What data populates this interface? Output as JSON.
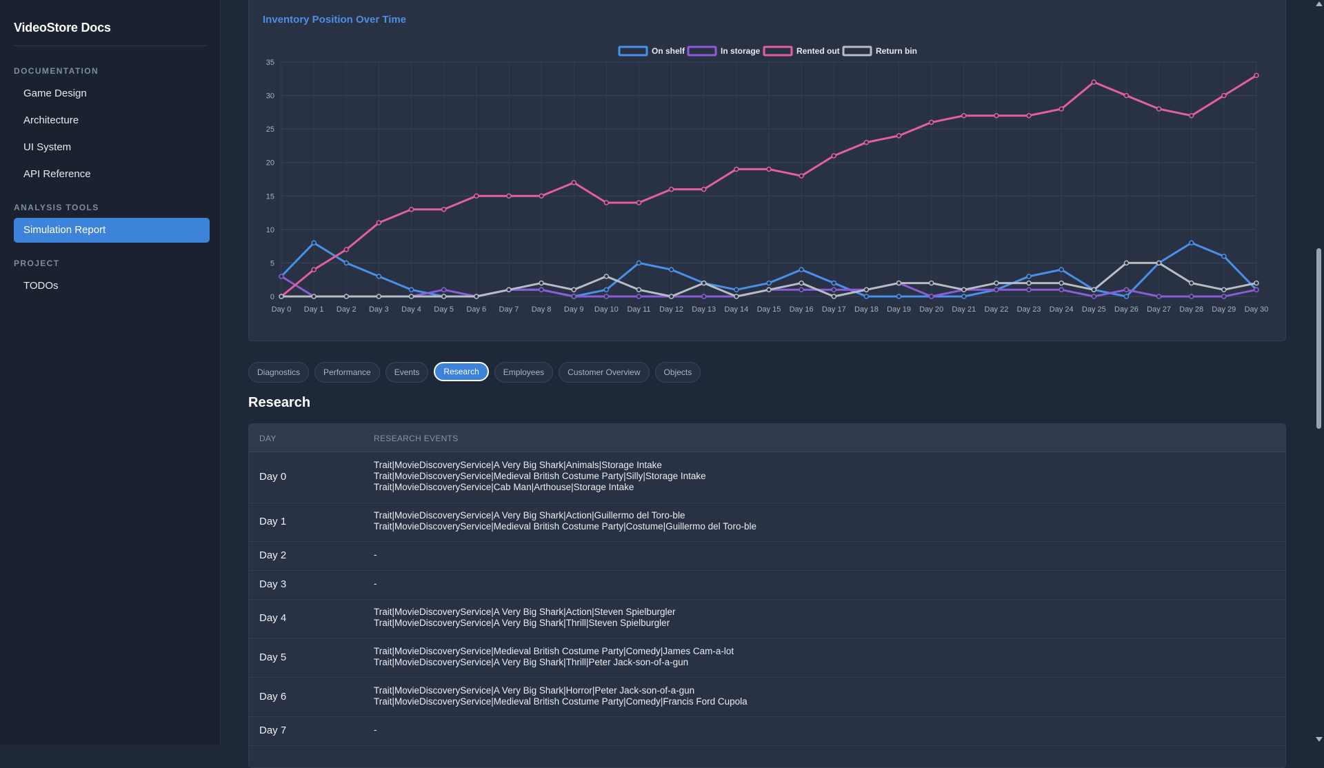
{
  "app": {
    "brand": "VideoStore Docs"
  },
  "sidebar": {
    "sections": [
      {
        "label": "DOCUMENTATION"
      },
      {
        "label": "ANALYSIS TOOLS"
      },
      {
        "label": "PROJECT"
      }
    ],
    "items": [
      {
        "label": "Game Design"
      },
      {
        "label": "Architecture"
      },
      {
        "label": "UI System"
      },
      {
        "label": "API Reference"
      },
      {
        "label": "Simulation Report",
        "active": true
      },
      {
        "label": "TODOs"
      }
    ]
  },
  "chart_data": {
    "type": "line",
    "title": "Inventory Position Over Time",
    "x": [
      "Day 0",
      "Day 1",
      "Day 2",
      "Day 3",
      "Day 4",
      "Day 5",
      "Day 6",
      "Day 7",
      "Day 8",
      "Day 9",
      "Day 10",
      "Day 11",
      "Day 12",
      "Day 13",
      "Day 14",
      "Day 15",
      "Day 16",
      "Day 17",
      "Day 18",
      "Day 19",
      "Day 20",
      "Day 21",
      "Day 22",
      "Day 23",
      "Day 24",
      "Day 25",
      "Day 26",
      "Day 27",
      "Day 28",
      "Day 29",
      "Day 30"
    ],
    "ylim": [
      0,
      35
    ],
    "yticks": [
      0,
      5,
      10,
      15,
      20,
      25,
      30,
      35
    ],
    "grid": true,
    "legend": "top-center",
    "series": [
      {
        "name": "On shelf",
        "color": "#4a8fe8",
        "values": [
          3,
          8,
          5,
          3,
          1,
          0,
          0,
          1,
          1,
          0,
          1,
          5,
          4,
          2,
          1,
          2,
          4,
          2,
          0,
          0,
          0,
          0,
          1,
          3,
          4,
          1,
          0,
          5,
          8,
          6,
          1
        ]
      },
      {
        "name": "In storage",
        "color": "#8b5cd6",
        "values": [
          3,
          0,
          0,
          0,
          0,
          1,
          0,
          1,
          1,
          0,
          0,
          0,
          0,
          0,
          0,
          1,
          1,
          1,
          1,
          2,
          0,
          1,
          1,
          1,
          1,
          0,
          1,
          0,
          0,
          0,
          1
        ]
      },
      {
        "name": "Rented out",
        "color": "#e35fa0",
        "values": [
          0,
          4,
          7,
          11,
          13,
          13,
          15,
          15,
          15,
          17,
          14,
          14,
          16,
          16,
          19,
          19,
          18,
          21,
          23,
          24,
          26,
          27,
          27,
          27,
          28,
          32,
          30,
          28,
          27,
          30,
          33
        ]
      },
      {
        "name": "Return bin",
        "color": "#b8bcc4",
        "values": [
          0,
          0,
          0,
          0,
          0,
          0,
          0,
          1,
          2,
          1,
          3,
          1,
          0,
          2,
          0,
          1,
          2,
          0,
          1,
          2,
          2,
          1,
          2,
          2,
          2,
          1,
          5,
          5,
          2,
          1,
          2
        ]
      }
    ]
  },
  "tabs": [
    {
      "label": "Diagnostics"
    },
    {
      "label": "Performance"
    },
    {
      "label": "Events"
    },
    {
      "label": "Research",
      "active": true
    },
    {
      "label": "Employees"
    },
    {
      "label": "Customer Overview"
    },
    {
      "label": "Objects"
    }
  ],
  "section_title": "Research",
  "table": {
    "headers": [
      "DAY",
      "RESEARCH EVENTS"
    ],
    "rows": [
      {
        "day": "Day 0",
        "events": [
          "Trait|MovieDiscoveryService|A Very Big Shark|Animals|Storage Intake",
          "Trait|MovieDiscoveryService|Medieval British Costume Party|Silly|Storage Intake",
          "Trait|MovieDiscoveryService|Cab Man|Arthouse|Storage Intake"
        ]
      },
      {
        "day": "Day 1",
        "events": [
          "Trait|MovieDiscoveryService|A Very Big Shark|Action|Guillermo del Toro-ble",
          "Trait|MovieDiscoveryService|Medieval British Costume Party|Costume|Guillermo del Toro-ble"
        ]
      },
      {
        "day": "Day 2",
        "events": [
          "-"
        ]
      },
      {
        "day": "Day 3",
        "events": [
          "-"
        ]
      },
      {
        "day": "Day 4",
        "events": [
          "Trait|MovieDiscoveryService|A Very Big Shark|Action|Steven Spielburgler",
          "Trait|MovieDiscoveryService|A Very Big Shark|Thrill|Steven Spielburgler"
        ]
      },
      {
        "day": "Day 5",
        "events": [
          "Trait|MovieDiscoveryService|Medieval British Costume Party|Comedy|James Cam-a-lot",
          "Trait|MovieDiscoveryService|A Very Big Shark|Thrill|Peter Jack-son-of-a-gun"
        ]
      },
      {
        "day": "Day 6",
        "events": [
          "Trait|MovieDiscoveryService|A Very Big Shark|Horror|Peter Jack-son-of-a-gun",
          "Trait|MovieDiscoveryService|Medieval British Costume Party|Comedy|Francis Ford Cupola"
        ]
      },
      {
        "day": "Day 7",
        "events": [
          "-"
        ]
      }
    ]
  }
}
